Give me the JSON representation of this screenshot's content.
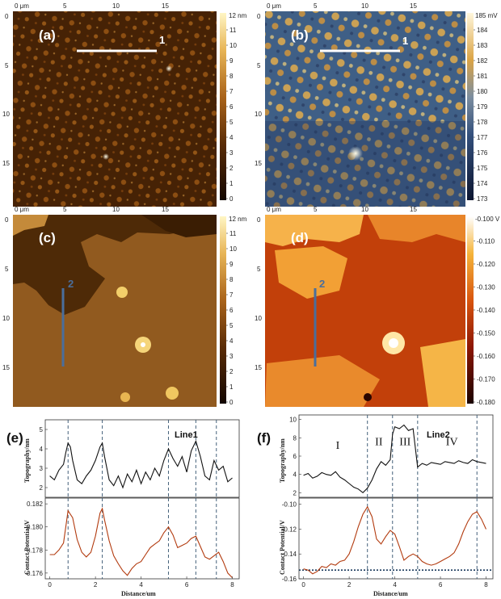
{
  "figure": {
    "panels": {
      "a": {
        "label": "(a)",
        "line_marker": "1",
        "colorbar": {
          "unit": "nm",
          "top_label": "12 nm",
          "ticks": [
            "11",
            "10",
            "9",
            "8",
            "7",
            "6",
            "5",
            "4",
            "3",
            "2",
            "1",
            "0"
          ]
        }
      },
      "b": {
        "label": "(b)",
        "line_marker": "1",
        "colorbar": {
          "unit": "mV",
          "top_label": "185 mV",
          "ticks": [
            "184",
            "183",
            "182",
            "181",
            "180",
            "179",
            "178",
            "177",
            "176",
            "175",
            "174",
            "173"
          ]
        }
      },
      "c": {
        "label": "(c)",
        "line_marker": "2",
        "colorbar": {
          "unit": "nm",
          "top_label": "12 nm",
          "ticks": [
            "11",
            "10",
            "9",
            "8",
            "7",
            "6",
            "5",
            "4",
            "3",
            "2",
            "1",
            "0"
          ]
        }
      },
      "d": {
        "label": "(d)",
        "line_marker": "2",
        "colorbar": {
          "unit": "V",
          "top_label": "-0.100 V",
          "ticks": [
            "-0.110",
            "-0.120",
            "-0.130",
            "-0.140",
            "-0.150",
            "-0.160",
            "-0.170",
            "-0.180"
          ]
        }
      },
      "e": {
        "label": "(e)",
        "line_name": "Line1"
      },
      "f": {
        "label": "(f)",
        "line_name": "Line2",
        "regions": [
          "I",
          "II",
          "III",
          "IV"
        ]
      }
    },
    "image_axes": {
      "x_ticks": [
        "0 μm",
        "5",
        "10",
        "15"
      ],
      "y_ticks": [
        "0",
        "5",
        "10",
        "15"
      ]
    },
    "colors": {
      "afm_low": "#2b1200",
      "afm_mid": "#8a4a10",
      "afm_high": "#fff2b0",
      "kpfm_b_low": "#1c2f5c",
      "kpfm_b_high": "#f6dd90",
      "kpfm_d_low": "#9b1c05",
      "kpfm_d_high": "#ffffff",
      "topo_line": "#111111",
      "potential_line": "#b23a0e",
      "guide_line": "#44617a",
      "scan_line_c": "#4a6e9c"
    }
  },
  "chart_data": [
    {
      "type": "line",
      "panel": "(e) top",
      "ylabel": "Topography/nm",
      "ylim": [
        1.5,
        5.5
      ],
      "y_ticks": [
        "2",
        "3",
        "4",
        "5"
      ],
      "xlim": [
        -0.2,
        8.3
      ],
      "x": [
        0,
        0.2,
        0.4,
        0.6,
        0.7,
        0.8,
        0.9,
        1.0,
        1.2,
        1.4,
        1.6,
        1.8,
        2.0,
        2.2,
        2.3,
        2.4,
        2.6,
        2.8,
        3.0,
        3.2,
        3.4,
        3.6,
        3.8,
        4.0,
        4.2,
        4.4,
        4.6,
        4.8,
        5.0,
        5.2,
        5.4,
        5.6,
        5.8,
        6.0,
        6.2,
        6.4,
        6.6,
        6.8,
        7.0,
        7.2,
        7.4,
        7.6,
        7.8,
        8.0
      ],
      "values": [
        2.6,
        2.4,
        2.9,
        3.2,
        3.8,
        4.3,
        4.1,
        3.4,
        2.4,
        2.2,
        2.6,
        2.9,
        3.4,
        4.1,
        4.3,
        3.6,
        2.4,
        2.1,
        2.6,
        2.0,
        2.7,
        2.3,
        2.9,
        2.2,
        2.8,
        2.4,
        3.0,
        2.6,
        3.4,
        4.0,
        3.5,
        3.1,
        3.6,
        2.8,
        3.9,
        4.4,
        3.6,
        2.6,
        2.4,
        3.4,
        2.9,
        3.1,
        2.3,
        2.5
      ],
      "guides_x": [
        0.8,
        2.3,
        5.2,
        6.4,
        7.3
      ]
    },
    {
      "type": "line",
      "panel": "(e) bottom",
      "ylabel": "Contact Potential/V",
      "xlabel": "Distance/um",
      "ylim": [
        0.1755,
        0.1825
      ],
      "y_ticks": [
        "0.176",
        "0.178",
        "0.180",
        "0.182"
      ],
      "x_ticks": [
        "0",
        "2",
        "4",
        "6",
        "8"
      ],
      "xlim": [
        -0.2,
        8.3
      ],
      "x": [
        0,
        0.2,
        0.4,
        0.6,
        0.8,
        1.0,
        1.2,
        1.4,
        1.6,
        1.8,
        2.0,
        2.2,
        2.3,
        2.4,
        2.6,
        2.8,
        3.0,
        3.2,
        3.4,
        3.6,
        3.8,
        4.0,
        4.2,
        4.4,
        4.6,
        4.8,
        5.0,
        5.2,
        5.4,
        5.6,
        5.8,
        6.0,
        6.2,
        6.4,
        6.6,
        6.8,
        7.0,
        7.2,
        7.4,
        7.6,
        7.8,
        8.0
      ],
      "values": [
        0.1776,
        0.1776,
        0.178,
        0.1786,
        0.1814,
        0.1808,
        0.1789,
        0.1778,
        0.1774,
        0.1778,
        0.1792,
        0.1812,
        0.1816,
        0.1806,
        0.1788,
        0.1775,
        0.1768,
        0.1762,
        0.1758,
        0.1764,
        0.1768,
        0.177,
        0.1776,
        0.1782,
        0.1785,
        0.1788,
        0.1795,
        0.18,
        0.1793,
        0.1782,
        0.1784,
        0.1786,
        0.179,
        0.1792,
        0.1783,
        0.1774,
        0.1772,
        0.1775,
        0.1778,
        0.177,
        0.176,
        0.1756
      ],
      "guides_x": [
        0.8,
        2.3,
        5.2,
        6.4,
        7.3
      ]
    },
    {
      "type": "line",
      "panel": "(f) top",
      "ylabel": "Topography/nm",
      "ylim": [
        1.5,
        10.5
      ],
      "y_ticks": [
        "2",
        "4",
        "6",
        "8",
        "10"
      ],
      "xlim": [
        -0.2,
        8.3
      ],
      "x": [
        0,
        0.2,
        0.4,
        0.6,
        0.8,
        1.0,
        1.2,
        1.4,
        1.6,
        1.8,
        2.0,
        2.2,
        2.4,
        2.6,
        2.8,
        3.0,
        3.2,
        3.4,
        3.6,
        3.8,
        3.9,
        4.0,
        4.2,
        4.4,
        4.6,
        4.8,
        5.0,
        5.2,
        5.4,
        5.6,
        5.8,
        6.0,
        6.2,
        6.4,
        6.6,
        6.8,
        7.0,
        7.2,
        7.4,
        7.6,
        7.8,
        8.0
      ],
      "values": [
        3.9,
        4.1,
        3.6,
        3.8,
        4.2,
        4.0,
        3.9,
        4.3,
        3.7,
        3.4,
        3.0,
        2.6,
        2.4,
        2.0,
        2.5,
        3.4,
        4.6,
        5.4,
        5.0,
        5.6,
        8.4,
        9.2,
        9.0,
        9.4,
        8.8,
        9.0,
        4.8,
        5.2,
        5.0,
        5.3,
        5.2,
        5.1,
        5.4,
        5.3,
        5.2,
        5.5,
        5.3,
        5.2,
        5.6,
        5.4,
        5.3,
        5.2
      ],
      "guides_x": [
        2.8,
        3.9,
        5.0,
        7.6
      ],
      "region_labels": [
        {
          "text": "I",
          "x": 1.5,
          "y": 6.8
        },
        {
          "text": "II",
          "x": 3.3,
          "y": 7.2
        },
        {
          "text": "III",
          "x": 4.45,
          "y": 7.2
        },
        {
          "text": "IV",
          "x": 6.5,
          "y": 7.2
        }
      ]
    },
    {
      "type": "line",
      "panel": "(f) bottom",
      "ylabel": "Contact Potential/V",
      "xlabel": "Distance/um",
      "ylim": [
        -0.16,
        -0.095
      ],
      "y_ticks": [
        "-0.10",
        "-0.12",
        "-0.14",
        "-0.16"
      ],
      "x_ticks": [
        "0",
        "2",
        "4",
        "6",
        "8"
      ],
      "xlim": [
        -0.2,
        8.3
      ],
      "x": [
        0,
        0.2,
        0.4,
        0.6,
        0.8,
        1.0,
        1.2,
        1.4,
        1.6,
        1.8,
        2.0,
        2.2,
        2.4,
        2.6,
        2.8,
        3.0,
        3.2,
        3.4,
        3.6,
        3.8,
        4.0,
        4.2,
        4.4,
        4.6,
        4.8,
        5.0,
        5.2,
        5.4,
        5.6,
        5.8,
        6.0,
        6.2,
        6.4,
        6.6,
        6.8,
        7.0,
        7.2,
        7.4,
        7.6,
        7.8,
        8.0
      ],
      "values": [
        -0.152,
        -0.153,
        -0.156,
        -0.154,
        -0.15,
        -0.151,
        -0.148,
        -0.149,
        -0.146,
        -0.145,
        -0.14,
        -0.13,
        -0.118,
        -0.108,
        -0.102,
        -0.11,
        -0.128,
        -0.132,
        -0.126,
        -0.121,
        -0.124,
        -0.134,
        -0.145,
        -0.142,
        -0.14,
        -0.142,
        -0.146,
        -0.148,
        -0.149,
        -0.148,
        -0.146,
        -0.144,
        -0.142,
        -0.139,
        -0.132,
        -0.122,
        -0.114,
        -0.108,
        -0.106,
        -0.112,
        -0.12
      ],
      "baseline_y": -0.153,
      "guides_x": [
        2.8,
        3.9,
        5.0,
        7.6
      ]
    }
  ]
}
